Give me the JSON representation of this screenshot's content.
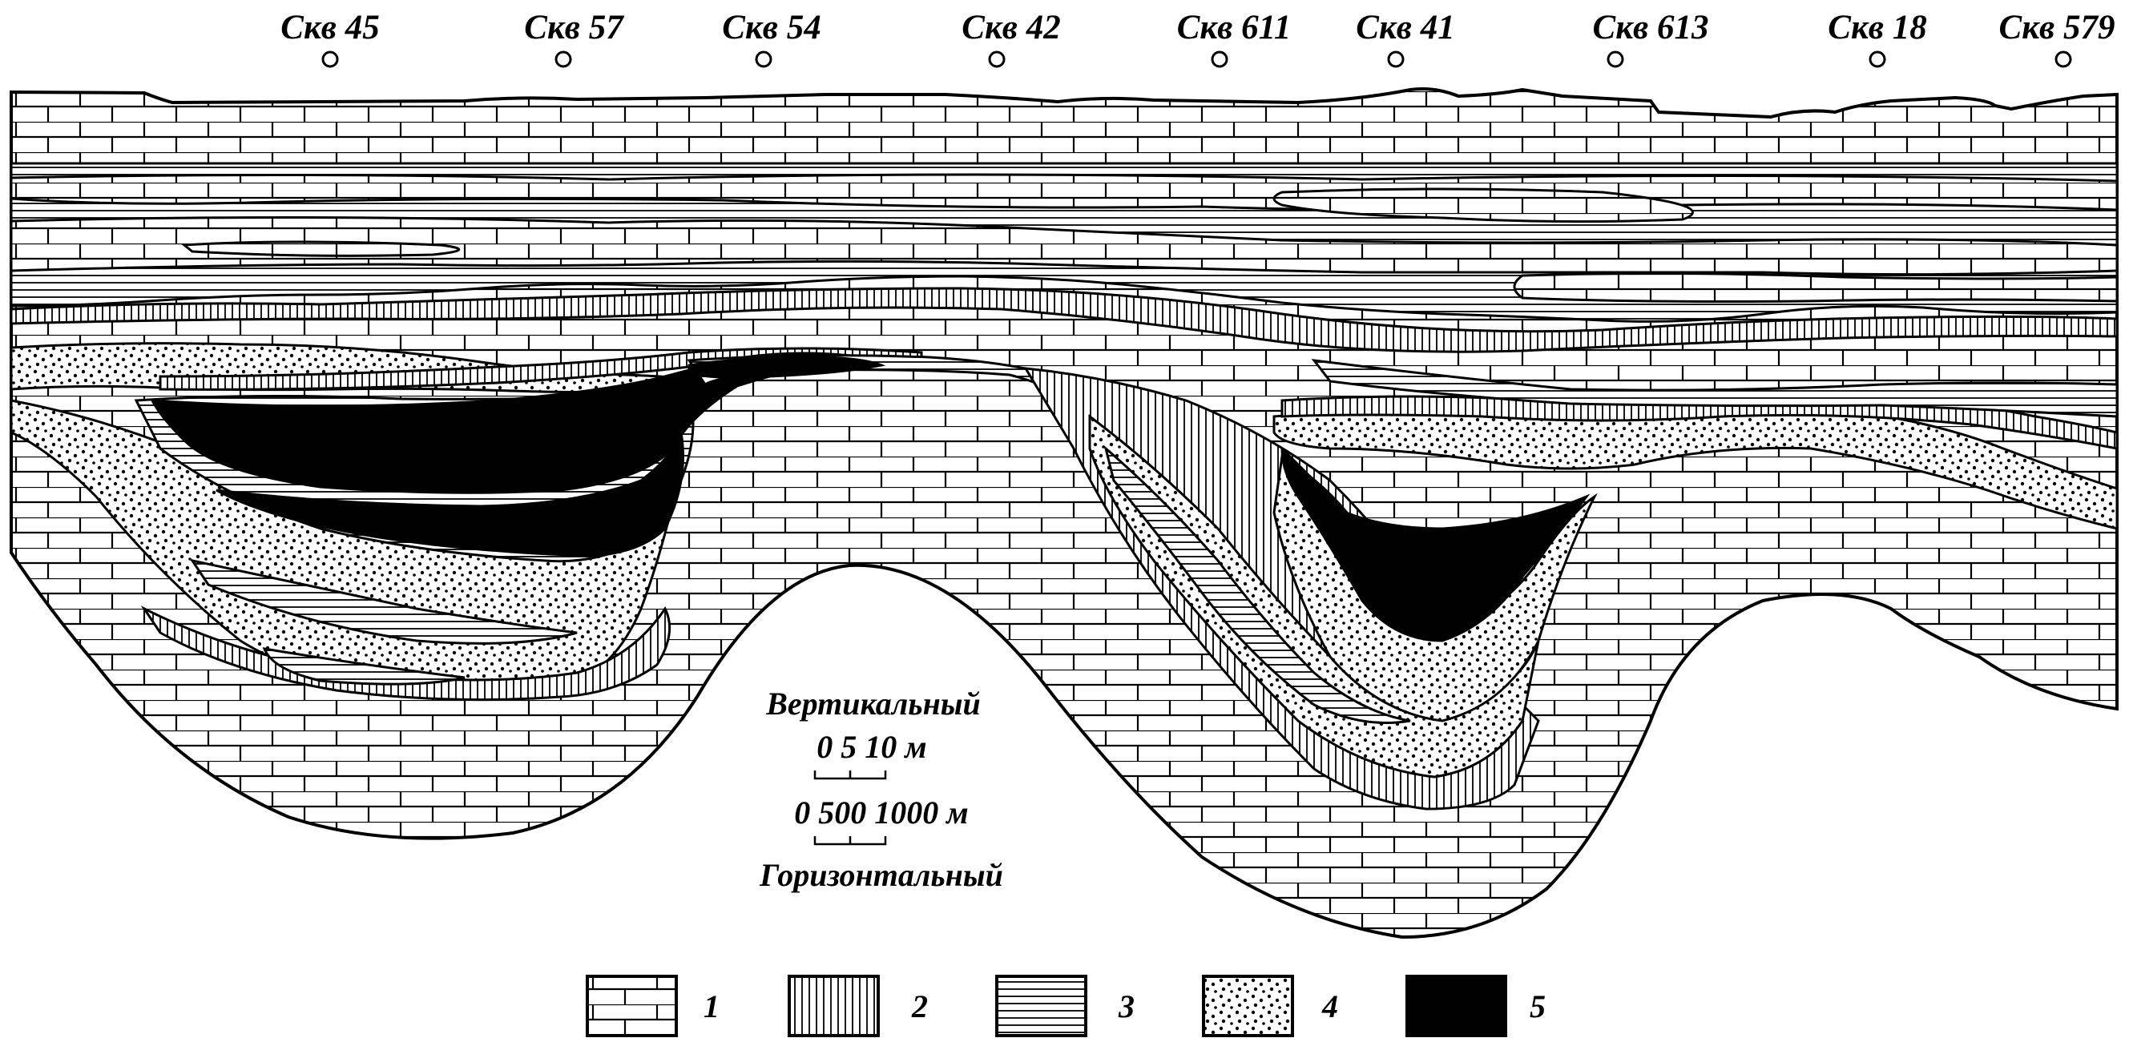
{
  "wells": [
    {
      "label": "Скв 45"
    },
    {
      "label": "Скв 57"
    },
    {
      "label": "Скв 54"
    },
    {
      "label": "Скв 42"
    },
    {
      "label": "Скв 611"
    },
    {
      "label": "Скв 41"
    },
    {
      "label": "Скв 613"
    },
    {
      "label": "Скв 18"
    },
    {
      "label": "Скв 579"
    }
  ],
  "scale": {
    "vertical_title": "Вертикальный",
    "vertical_ticks": "0  5 10 м",
    "horizontal_ticks": "0 500 1000 м",
    "horizontal_title": "Горизонтальный"
  },
  "legend": [
    {
      "num": "1",
      "pattern": "limestone"
    },
    {
      "num": "2",
      "pattern": "vertical-hatch"
    },
    {
      "num": "3",
      "pattern": "horizontal-hatch"
    },
    {
      "num": "4",
      "pattern": "sand-dots"
    },
    {
      "num": "5",
      "pattern": "solid-black"
    }
  ],
  "colors": {
    "ink": "#000000",
    "paper": "#ffffff"
  }
}
